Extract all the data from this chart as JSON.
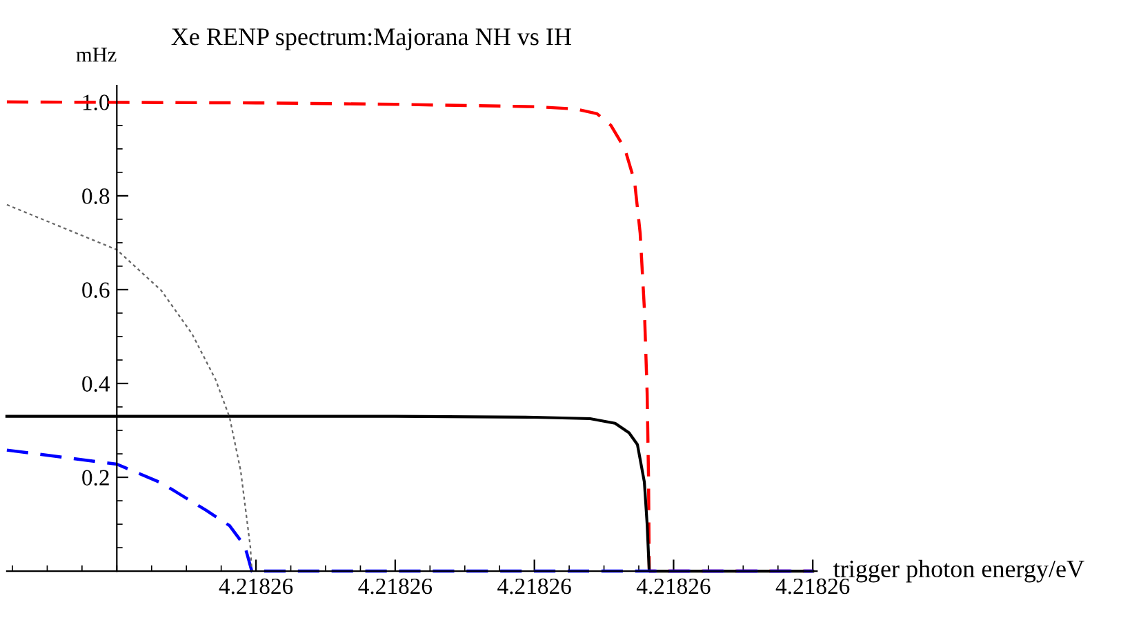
{
  "chart_data": {
    "type": "line",
    "title": "Xe RENP spectrum:Majorana NH vs IH",
    "xlabel": "trigger photon energy/eV",
    "ylabel": "mHz",
    "xlim": [
      4.21825242,
      4.21826406
    ],
    "ylim": [
      0,
      1.035
    ],
    "xticks": [
      {
        "value": 4.218256,
        "label": "4.21826"
      },
      {
        "value": 4.218258,
        "label": "4.21826"
      },
      {
        "value": 4.21826,
        "label": "4.21826"
      },
      {
        "value": 4.218262,
        "label": "4.21826"
      },
      {
        "value": 4.218264,
        "label": "4.21826"
      }
    ],
    "yticks": [
      0.2,
      0.4,
      0.6,
      0.8,
      {
        "value": 1.0,
        "label": "1.0"
      }
    ],
    "grid": false,
    "legend": false,
    "marker": "none",
    "series": [
      {
        "color": "#ff0000",
        "line_style": "dashed",
        "x": [
          4.21825242,
          4.218256,
          4.218258,
          4.21826,
          4.2182606,
          4.2182609,
          4.2182611,
          4.2182613,
          4.21826144,
          4.21826152,
          4.21826158,
          4.21826162,
          4.21826164,
          4.21826165,
          4.218264
        ],
        "values": [
          1.0,
          0.998,
          0.995,
          0.99,
          0.985,
          0.975,
          0.95,
          0.9,
          0.83,
          0.72,
          0.56,
          0.38,
          0.2,
          0,
          0
        ]
      },
      {
        "color": "#000000",
        "line_style": "solid",
        "x": [
          4.21825242,
          4.218256,
          4.218258,
          4.21826,
          4.2182608,
          4.21826116,
          4.21826136,
          4.21826148,
          4.21826158,
          4.21826162,
          4.21826165,
          4.218264
        ],
        "values": [
          0.33,
          0.33,
          0.33,
          0.328,
          0.325,
          0.315,
          0.295,
          0.27,
          0.19,
          0.1,
          0,
          0
        ]
      },
      {
        "color": "#0000ff",
        "line_style": "dashed",
        "x": [
          4.21825242,
          4.218254,
          4.21825464,
          4.21825528,
          4.21825562,
          4.21825584,
          4.21825594,
          4.218264
        ],
        "values": [
          0.258,
          0.228,
          0.188,
          0.13,
          0.097,
          0.053,
          0,
          0
        ]
      },
      {
        "color": "#666666",
        "line_style": "dotted",
        "x": [
          4.21825242,
          4.218254,
          4.21825464,
          4.21825508,
          4.21825542,
          4.21825562,
          4.21825578,
          4.21825592,
          4.21825594
        ],
        "values": [
          0.781,
          0.685,
          0.598,
          0.506,
          0.408,
          0.328,
          0.214,
          0.05,
          0
        ]
      }
    ]
  }
}
